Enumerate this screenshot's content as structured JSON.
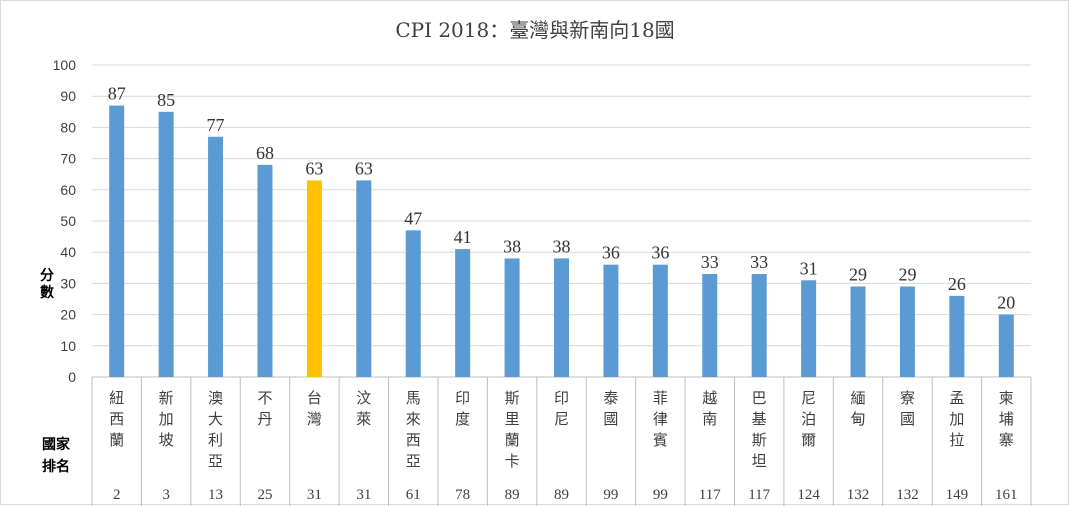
{
  "chart_data": {
    "type": "bar",
    "title": "CPI 2018：臺灣與新南向18國",
    "ylabel": "分數",
    "table_header_line1": "國家",
    "table_header_line2": "排名",
    "ylim": [
      0,
      100
    ],
    "yticks": [
      0,
      10,
      20,
      30,
      40,
      50,
      60,
      70,
      80,
      90,
      100
    ],
    "grid": true,
    "categories": [
      "紐西蘭",
      "新加坡",
      "澳大利亞",
      "不丹",
      "台灣",
      "汶萊",
      "馬來西亞",
      "印度",
      "斯里蘭卡",
      "印尼",
      "泰國",
      "菲律賓",
      "越南",
      "巴基斯坦",
      "尼泊爾",
      "緬甸",
      "寮國",
      "孟加拉",
      "柬埔寨"
    ],
    "values": [
      87,
      85,
      77,
      68,
      63,
      63,
      47,
      41,
      38,
      38,
      36,
      36,
      33,
      33,
      31,
      29,
      29,
      26,
      20
    ],
    "ranks": [
      2,
      3,
      13,
      25,
      31,
      31,
      61,
      78,
      89,
      89,
      99,
      99,
      117,
      117,
      124,
      132,
      132,
      149,
      161
    ],
    "highlight_category": "台灣",
    "colors": {
      "bar": "#5b9bd5",
      "highlight": "#ffc000",
      "grid": "#d9d9d9",
      "axis": "#bfbfbf"
    }
  }
}
